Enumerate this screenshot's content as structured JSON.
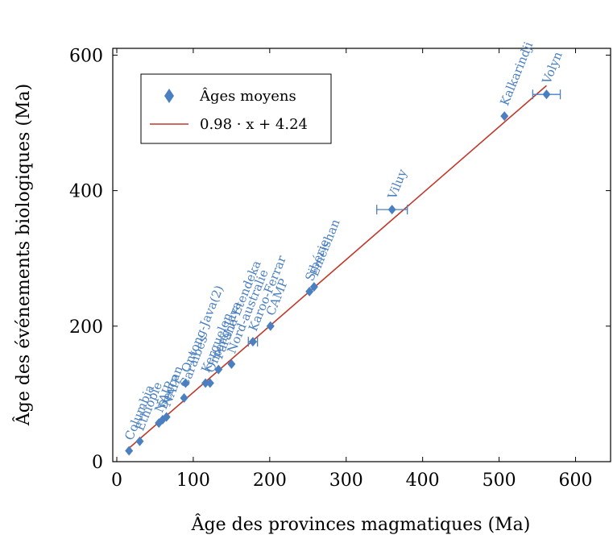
{
  "chart_data": {
    "type": "scatter",
    "xlabel": "Âge des provinces magmatiques (Ma)",
    "ylabel": "Âge des événements biologiques (Ma)",
    "xlim": [
      0,
      630
    ],
    "ylim": [
      0,
      610
    ],
    "x_ticks": [
      0,
      100,
      200,
      300,
      400,
      500,
      600
    ],
    "y_ticks": [
      0,
      200,
      400,
      600
    ],
    "grid": false,
    "legend": {
      "placement": "top-left",
      "entries": [
        {
          "label": "Âges moyens",
          "marker": "diamond",
          "color": "#4a7fc0"
        },
        {
          "label": "0.98 · x + 4.24",
          "marker": "line",
          "color": "#c0392b"
        }
      ]
    },
    "series": [
      {
        "name": "Âges moyens",
        "color": "#4a7fc0",
        "points": [
          {
            "label": "Columbia",
            "x": 16,
            "y": 16
          },
          {
            "label": "Ethiopie",
            "x": 30,
            "y": 30
          },
          {
            "label": "NAIP",
            "x": 55,
            "y": 57
          },
          {
            "label": "Deccan",
            "x": 60,
            "y": 62
          },
          {
            "label": "NAIP",
            "x": 65,
            "y": 66
          },
          {
            "label": "Caraïbes",
            "x": 88,
            "y": 94
          },
          {
            "label": "Ontong-Java(2)",
            "x": 90,
            "y": 116
          },
          {
            "label": "Kerguelen",
            "x": 116,
            "y": 116
          },
          {
            "label": "Ontong-Java",
            "x": 122,
            "y": 116
          },
          {
            "label": "Parana-Etendeka",
            "x": 133,
            "y": 136
          },
          {
            "label": "Nord-australie",
            "x": 150,
            "y": 144
          },
          {
            "label": "Karoo-Ferrar",
            "x": 178,
            "y": 177,
            "x_err": 6
          },
          {
            "label": "CAMP",
            "x": 201,
            "y": 200
          },
          {
            "label": "Sibérie",
            "x": 252,
            "y": 251
          },
          {
            "label": "Emeishan",
            "x": 258,
            "y": 258
          },
          {
            "label": "Viluy",
            "x": 360,
            "y": 372,
            "x_err": 20
          },
          {
            "label": "Kalkarindji",
            "x": 507,
            "y": 510
          },
          {
            "label": "Volyn",
            "x": 562,
            "y": 542,
            "x_err": 18
          }
        ]
      },
      {
        "name": "0.98 · x + 4.24",
        "color": "#c0392b",
        "fit": {
          "slope": 0.98,
          "intercept": 4.24,
          "x_range": [
            16,
            562
          ]
        }
      }
    ]
  }
}
